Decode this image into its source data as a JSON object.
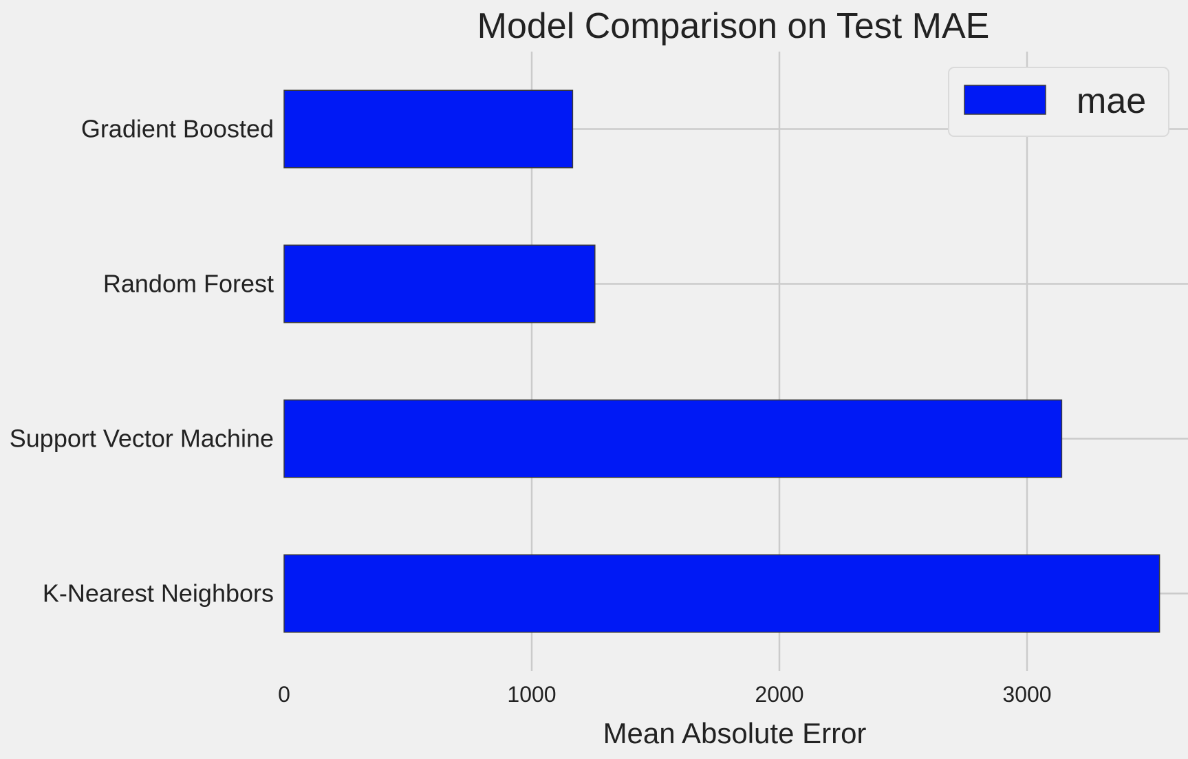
{
  "chart_data": {
    "type": "bar",
    "orientation": "horizontal",
    "title": "Model Comparison on Test MAE",
    "xlabel": "Mean Absolute Error",
    "ylabel": "",
    "categories": [
      "Gradient Boosted",
      "Random Forest",
      "Support Vector Machine",
      "K-Nearest Neighbors"
    ],
    "series": [
      {
        "name": "mae",
        "values": [
          1165,
          1255,
          3140,
          3535
        ],
        "color": "#0019f5"
      }
    ],
    "xlim": [
      0,
      3650
    ],
    "xticks": [
      0,
      1000,
      2000,
      3000
    ],
    "xtick_labels": [
      "0",
      "1000",
      "2000",
      "3000"
    ],
    "grid": true,
    "legend": {
      "position": "top-right",
      "entries": [
        "mae"
      ]
    },
    "colors": {
      "background": "#f0f0f0",
      "grid": "#cbcbcb",
      "bar": "#0019f5"
    }
  }
}
